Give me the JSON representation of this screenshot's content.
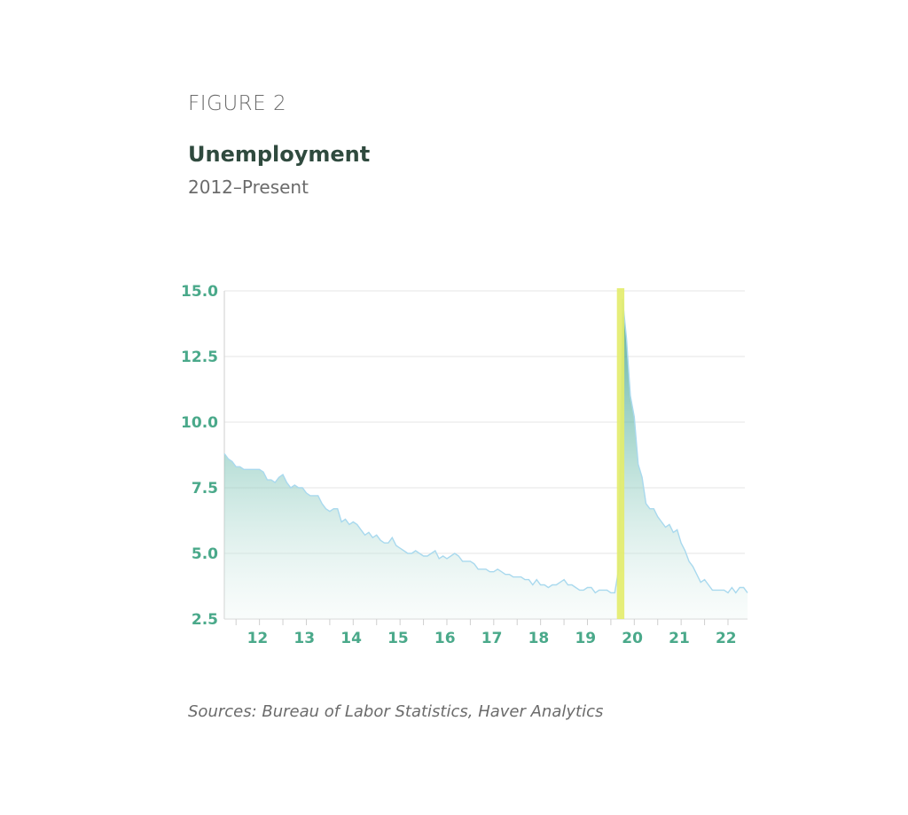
{
  "figure_label": "FIGURE 2",
  "title": "Unemployment",
  "subtitle": "2012–Present",
  "source": "Sources: Bureau of Labor Statistics, Haver Analytics",
  "colors": {
    "area_fill": "#8ecbbe",
    "line": "#a9d9ee",
    "tick_label": "#4aa98a",
    "highlight": "#e3ec6a",
    "grid": "#e6e6e6"
  },
  "chart_data": {
    "type": "area",
    "ylim": [
      2.5,
      15.0
    ],
    "y_ticks": [
      "15.0",
      "12.5",
      "10.0",
      "7.5",
      "5.0",
      "2.5"
    ],
    "x_ticks": [
      "12",
      "13",
      "14",
      "15",
      "16",
      "17",
      "18",
      "19",
      "20",
      "21",
      "22"
    ],
    "grid": true,
    "highlight": {
      "start": "2020-03",
      "end": "2020-04"
    },
    "series": [
      {
        "x": [
          "2011-10",
          "2011-11",
          "2011-12",
          "2012-01",
          "2012-02",
          "2012-03",
          "2012-04",
          "2012-05",
          "2012-06",
          "2012-07",
          "2012-08",
          "2012-09",
          "2012-10",
          "2012-11",
          "2012-12",
          "2013-01",
          "2013-02",
          "2013-03",
          "2013-04",
          "2013-05",
          "2013-06",
          "2013-07",
          "2013-08",
          "2013-09",
          "2013-10",
          "2013-11",
          "2013-12",
          "2014-01",
          "2014-02",
          "2014-03",
          "2014-04",
          "2014-05",
          "2014-06",
          "2014-07",
          "2014-08",
          "2014-09",
          "2014-10",
          "2014-11",
          "2014-12",
          "2015-01",
          "2015-02",
          "2015-03",
          "2015-04",
          "2015-05",
          "2015-06",
          "2015-07",
          "2015-08",
          "2015-09",
          "2015-10",
          "2015-11",
          "2015-12",
          "2016-01",
          "2016-02",
          "2016-03",
          "2016-04",
          "2016-05",
          "2016-06",
          "2016-07",
          "2016-08",
          "2016-09",
          "2016-10",
          "2016-11",
          "2016-12",
          "2017-01",
          "2017-02",
          "2017-03",
          "2017-04",
          "2017-05",
          "2017-06",
          "2017-07",
          "2017-08",
          "2017-09",
          "2017-10",
          "2017-11",
          "2017-12",
          "2018-01",
          "2018-02",
          "2018-03",
          "2018-04",
          "2018-05",
          "2018-06",
          "2018-07",
          "2018-08",
          "2018-09",
          "2018-10",
          "2018-11",
          "2018-12",
          "2019-01",
          "2019-02",
          "2019-03",
          "2019-04",
          "2019-05",
          "2019-06",
          "2019-07",
          "2019-08",
          "2019-09",
          "2019-10",
          "2019-11",
          "2019-12",
          "2020-01",
          "2020-02",
          "2020-03",
          "2020-04",
          "2020-05",
          "2020-06",
          "2020-07",
          "2020-08",
          "2020-09",
          "2020-10",
          "2020-11",
          "2020-12",
          "2021-01",
          "2021-02",
          "2021-03",
          "2021-04",
          "2021-05",
          "2021-06",
          "2021-07",
          "2021-08",
          "2021-09",
          "2021-10",
          "2021-11",
          "2021-12",
          "2022-01",
          "2022-02",
          "2022-03",
          "2022-04",
          "2022-05",
          "2022-06",
          "2022-07",
          "2022-08",
          "2022-09",
          "2022-10",
          "2022-11",
          "2022-12"
        ],
        "values": [
          8.8,
          8.6,
          8.5,
          8.3,
          8.3,
          8.2,
          8.2,
          8.2,
          8.2,
          8.2,
          8.1,
          7.8,
          7.8,
          7.7,
          7.9,
          8.0,
          7.7,
          7.5,
          7.6,
          7.5,
          7.5,
          7.3,
          7.2,
          7.2,
          7.2,
          6.9,
          6.7,
          6.6,
          6.7,
          6.7,
          6.2,
          6.3,
          6.1,
          6.2,
          6.1,
          5.9,
          5.7,
          5.8,
          5.6,
          5.7,
          5.5,
          5.4,
          5.4,
          5.6,
          5.3,
          5.2,
          5.1,
          5.0,
          5.0,
          5.1,
          5.0,
          4.9,
          4.9,
          5.0,
          5.1,
          4.8,
          4.9,
          4.8,
          4.9,
          5.0,
          4.9,
          4.7,
          4.7,
          4.7,
          4.6,
          4.4,
          4.4,
          4.4,
          4.3,
          4.3,
          4.4,
          4.3,
          4.2,
          4.2,
          4.1,
          4.1,
          4.1,
          4.0,
          4.0,
          3.8,
          4.0,
          3.8,
          3.8,
          3.7,
          3.8,
          3.8,
          3.9,
          4.0,
          3.8,
          3.8,
          3.7,
          3.6,
          3.6,
          3.7,
          3.7,
          3.5,
          3.6,
          3.6,
          3.6,
          3.5,
          3.5,
          4.4,
          14.7,
          13.2,
          11.0,
          10.2,
          8.4,
          7.9,
          6.9,
          6.7,
          6.7,
          6.4,
          6.2,
          6.0,
          6.1,
          5.8,
          5.9,
          5.4,
          5.1,
          4.7,
          4.5,
          4.2,
          3.9,
          4.0,
          3.8,
          3.6,
          3.6,
          3.6,
          3.6,
          3.5,
          3.7,
          3.5,
          3.7,
          3.7,
          3.5
        ]
      }
    ]
  }
}
